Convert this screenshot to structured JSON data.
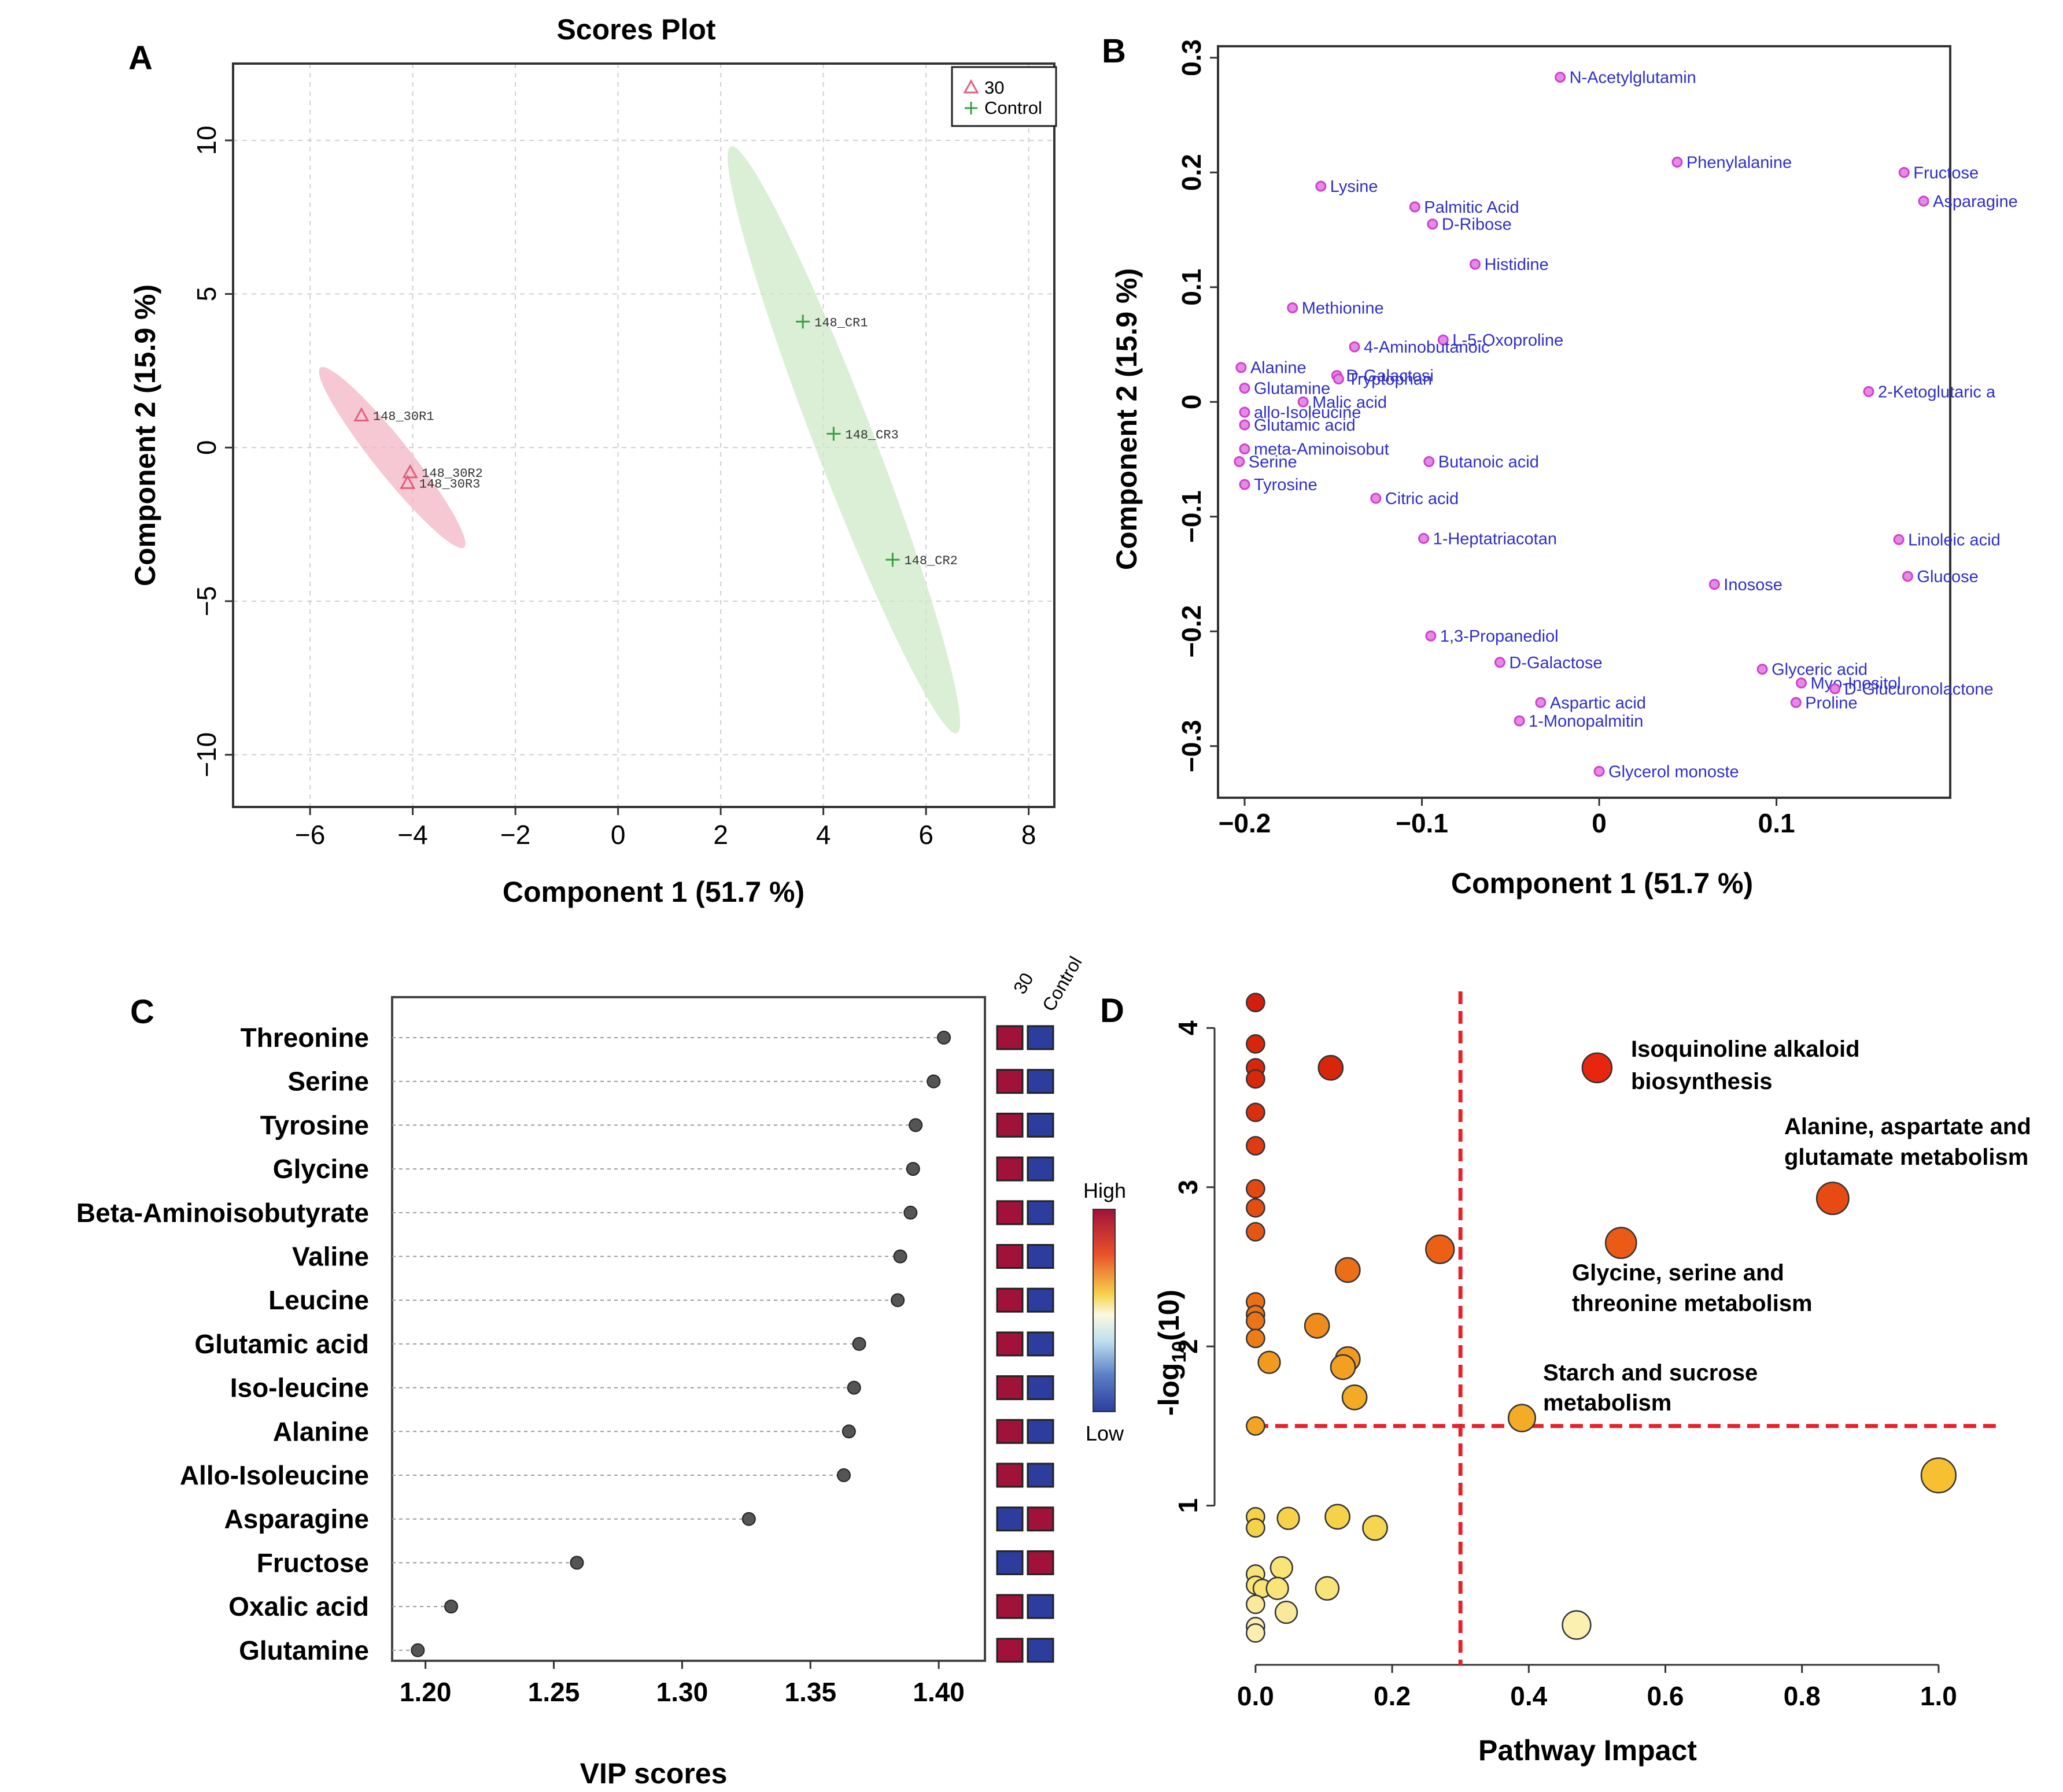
{
  "panels": {
    "A": {
      "letter": "A",
      "chart_data": {
        "type": "scatter",
        "title": "Scores Plot",
        "xlabel": "Component 1 (51.7 %)",
        "ylabel": "Component 2 (15.9 %)",
        "xlim": [
          -7.5,
          8.5
        ],
        "ylim": [
          -11.7,
          12.5
        ],
        "xticks": [
          -6,
          -4,
          -2,
          0,
          2,
          4,
          6,
          8
        ],
        "yticks": [
          -10,
          -5,
          0,
          5,
          10
        ],
        "grid": true,
        "legend": {
          "position": "top-right",
          "entries": [
            {
              "name": "30",
              "marker": "triangle",
              "color": "#e0607e"
            },
            {
              "name": "Control",
              "marker": "plus",
              "color": "#3aa040"
            }
          ]
        },
        "series": [
          {
            "name": "30",
            "marker": "triangle",
            "color": "#e0607e",
            "ellipse_color": "#f3b6c4",
            "points": [
              {
                "label": "148_30R1",
                "x": -5.0,
                "y": 1.05
              },
              {
                "label": "148_30R2",
                "x": -4.05,
                "y": -0.8
              },
              {
                "label": "148_30R3",
                "x": -4.1,
                "y": -1.15
              }
            ],
            "ellipse": {
              "cx": -4.4,
              "cy": -0.3,
              "x1": -5.8,
              "y1": 2.6,
              "x2": -3.0,
              "y2": -3.25,
              "halfwidth": 0.7
            }
          },
          {
            "name": "Control",
            "marker": "plus",
            "color": "#3aa040",
            "ellipse_color": "#cfe8c8",
            "points": [
              {
                "label": "148_CR1",
                "x": 3.6,
                "y": 4.1
              },
              {
                "label": "148_CR3",
                "x": 4.2,
                "y": 0.45
              },
              {
                "label": "148_CR2",
                "x": 5.35,
                "y": -3.65
              }
            ],
            "ellipse": {
              "cx": 4.4,
              "cy": 0.2,
              "x1": 2.2,
              "y1": 9.8,
              "x2": 6.6,
              "y2": -9.3,
              "halfwidth": 1.15
            }
          }
        ]
      }
    },
    "B": {
      "letter": "B",
      "chart_data": {
        "type": "scatter",
        "xlabel": "Component 1 (51.7 %)",
        "ylabel": "Component 2 (15.9 %)",
        "xlim": [
          -0.215,
          0.198
        ],
        "ylim": [
          -0.345,
          0.31
        ],
        "xticks": [
          -0.2,
          -0.1,
          0,
          0.1
        ],
        "xtick_labels": [
          "−0.2",
          "−0.1",
          "0",
          "0.1"
        ],
        "yticks": [
          -0.3,
          -0.2,
          -0.1,
          0,
          0.1,
          0.2,
          0.3
        ],
        "ytick_labels": [
          "−0.3",
          "−0.2",
          "−0.1",
          "0",
          "0.1",
          "0.2",
          "0.3"
        ],
        "point_color": "#cc44cc",
        "label_color": "#2f2fc8",
        "points": [
          {
            "label": "N-Acetylglutamin",
            "x": -0.022,
            "y": 0.283
          },
          {
            "label": "Phenylalanine",
            "x": 0.044,
            "y": 0.209
          },
          {
            "label": "Fructose",
            "x": 0.172,
            "y": 0.2
          },
          {
            "label": "Asparagine",
            "x": 0.183,
            "y": 0.175
          },
          {
            "label": "Lysine",
            "x": -0.157,
            "y": 0.188
          },
          {
            "label": "Palmitic Acid",
            "x": -0.104,
            "y": 0.17
          },
          {
            "label": "D-Ribose",
            "x": -0.094,
            "y": 0.155
          },
          {
            "label": "Histidine",
            "x": -0.07,
            "y": 0.12
          },
          {
            "label": "Methionine",
            "x": -0.173,
            "y": 0.082
          },
          {
            "label": "L-5-Oxoproline",
            "x": -0.088,
            "y": 0.054
          },
          {
            "label": "4-Aminobutanoic",
            "x": -0.138,
            "y": 0.048
          },
          {
            "label": "Alanine",
            "x": -0.202,
            "y": 0.03
          },
          {
            "label": "D-Galactosi",
            "x": -0.148,
            "y": 0.023
          },
          {
            "label": "Tryptophan",
            "x": -0.147,
            "y": 0.02
          },
          {
            "label": "Glutamine",
            "x": -0.2,
            "y": 0.012
          },
          {
            "label": "2-Ketoglutaric a",
            "x": 0.152,
            "y": 0.009
          },
          {
            "label": "Malic acid",
            "x": -0.167,
            "y": 0.0
          },
          {
            "label": "allo-Isoleucine",
            "x": -0.2,
            "y": -0.009
          },
          {
            "label": "Glutamic acid",
            "x": -0.2,
            "y": -0.02
          },
          {
            "label": "meta-Aminoisobut",
            "x": -0.2,
            "y": -0.041
          },
          {
            "label": "Serine",
            "x": -0.203,
            "y": -0.052
          },
          {
            "label": "Butanoic acid",
            "x": -0.096,
            "y": -0.052
          },
          {
            "label": "Tyrosine",
            "x": -0.2,
            "y": -0.072
          },
          {
            "label": "Citric acid",
            "x": -0.126,
            "y": -0.084
          },
          {
            "label": "1-Heptatriacotan",
            "x": -0.099,
            "y": -0.119
          },
          {
            "label": "Linoleic acid",
            "x": 0.169,
            "y": -0.12
          },
          {
            "label": "Glucose",
            "x": 0.174,
            "y": -0.152
          },
          {
            "label": "Inosose",
            "x": 0.065,
            "y": -0.159
          },
          {
            "label": "1,3-Propanediol",
            "x": -0.095,
            "y": -0.204
          },
          {
            "label": "D-Galactose",
            "x": -0.056,
            "y": -0.227
          },
          {
            "label": "Glyceric acid",
            "x": 0.092,
            "y": -0.233
          },
          {
            "label": "Myo-Inositol",
            "x": 0.114,
            "y": -0.245
          },
          {
            "label": "D-Glucuronolactone",
            "x": 0.133,
            "y": -0.25
          },
          {
            "label": "Proline",
            "x": 0.111,
            "y": -0.262
          },
          {
            "label": "Aspartic acid",
            "x": -0.033,
            "y": -0.262
          },
          {
            "label": "1-Monopalmitin",
            "x": -0.045,
            "y": -0.278
          },
          {
            "label": "Glycerol monoste",
            "x": 0.0,
            "y": -0.322
          }
        ]
      }
    },
    "C": {
      "letter": "C",
      "chart_data": {
        "type": "dot",
        "xlabel": "VIP scores",
        "xlim": [
          1.187,
          1.418
        ],
        "xticks": [
          1.2,
          1.25,
          1.3,
          1.35,
          1.4
        ],
        "xtick_labels": [
          "1.20",
          "1.25",
          "1.30",
          "1.35",
          "1.40"
        ],
        "heatmap_columns": [
          "30",
          "Control"
        ],
        "colorbar": {
          "high_label": "High",
          "low_label": "Low",
          "high_color": "#a0123a",
          "low_color": "#2c3d9e"
        },
        "rows": [
          {
            "name": "Threonine",
            "vip": 1.402,
            "heat": [
              "high",
              "low"
            ]
          },
          {
            "name": "Serine",
            "vip": 1.398,
            "heat": [
              "high",
              "low"
            ]
          },
          {
            "name": "Tyrosine",
            "vip": 1.391,
            "heat": [
              "high",
              "low"
            ]
          },
          {
            "name": "Glycine",
            "vip": 1.39,
            "heat": [
              "high",
              "low"
            ]
          },
          {
            "name": "Beta-Aminoisobutyrate",
            "vip": 1.389,
            "heat": [
              "high",
              "low"
            ]
          },
          {
            "name": "Valine",
            "vip": 1.385,
            "heat": [
              "high",
              "low"
            ]
          },
          {
            "name": "Leucine",
            "vip": 1.384,
            "heat": [
              "high",
              "low"
            ]
          },
          {
            "name": "Glutamic acid",
            "vip": 1.369,
            "heat": [
              "high",
              "low"
            ]
          },
          {
            "name": "Iso-leucine",
            "vip": 1.367,
            "heat": [
              "high",
              "low"
            ]
          },
          {
            "name": "Alanine",
            "vip": 1.365,
            "heat": [
              "high",
              "low"
            ]
          },
          {
            "name": "Allo-Isoleucine",
            "vip": 1.363,
            "heat": [
              "high",
              "low"
            ]
          },
          {
            "name": "Asparagine",
            "vip": 1.326,
            "heat": [
              "low",
              "high"
            ]
          },
          {
            "name": "Fructose",
            "vip": 1.259,
            "heat": [
              "low",
              "high"
            ]
          },
          {
            "name": "Oxalic acid",
            "vip": 1.21,
            "heat": [
              "high",
              "low"
            ]
          },
          {
            "name": "Glutamine",
            "vip": 1.197,
            "heat": [
              "high",
              "low"
            ]
          }
        ]
      }
    },
    "D": {
      "letter": "D",
      "chart_data": {
        "type": "scatter",
        "xlabel": "Pathway Impact",
        "ylabel": "-log10(10)",
        "ylabel_main": "-log",
        "ylabel_sub": "10",
        "ylabel_tail": "(10)",
        "xlim": [
          -0.06,
          1.1
        ],
        "ylim": [
          0.0,
          4.23
        ],
        "xticks": [
          0.0,
          0.2,
          0.4,
          0.6,
          0.8,
          1.0
        ],
        "xtick_labels": [
          "0.0",
          "0.2",
          "0.4",
          "0.6",
          "0.8",
          "1.0"
        ],
        "yticks": [
          1,
          2,
          3,
          4
        ],
        "thresholds": {
          "x": 0.3,
          "y": 1.5,
          "color": "#e8202a"
        },
        "annotations": [
          {
            "lines": [
              "Isoquinoline alkaloid",
              "biosynthesis"
            ]
          },
          {
            "lines": [
              "Alanine, aspartate and",
              "glutamate metabolism"
            ]
          },
          {
            "lines": [
              "Glycine, serine and",
              "threonine metabolism"
            ]
          },
          {
            "lines": [
              "Starch and sucrose",
              "metabolism"
            ]
          }
        ],
        "points": [
          {
            "x": 0.0,
            "y": 4.16,
            "r": 0.3,
            "color": "#d41e0c"
          },
          {
            "x": 0.0,
            "y": 3.9,
            "r": 0.3,
            "color": "#d8260c"
          },
          {
            "x": 0.0,
            "y": 3.75,
            "r": 0.3,
            "color": "#d8260c"
          },
          {
            "x": 0.0,
            "y": 3.68,
            "r": 0.3,
            "color": "#d8280c"
          },
          {
            "x": 0.0,
            "y": 3.47,
            "r": 0.3,
            "color": "#db2e0e"
          },
          {
            "x": 0.0,
            "y": 3.26,
            "r": 0.3,
            "color": "#df3a10"
          },
          {
            "x": 0.0,
            "y": 2.99,
            "r": 0.3,
            "color": "#e24812"
          },
          {
            "x": 0.0,
            "y": 2.87,
            "r": 0.3,
            "color": "#e44e12"
          },
          {
            "x": 0.0,
            "y": 2.72,
            "r": 0.3,
            "color": "#e55614"
          },
          {
            "x": 0.0,
            "y": 2.28,
            "r": 0.3,
            "color": "#ea7016"
          },
          {
            "x": 0.0,
            "y": 2.2,
            "r": 0.3,
            "color": "#eb7418"
          },
          {
            "x": 0.0,
            "y": 2.16,
            "r": 0.3,
            "color": "#eb7418"
          },
          {
            "x": 0.0,
            "y": 2.05,
            "r": 0.3,
            "color": "#ed7c18"
          },
          {
            "x": 0.0,
            "y": 1.5,
            "r": 0.3,
            "color": "#f2a422"
          },
          {
            "x": 0.11,
            "y": 3.75,
            "r": 0.55,
            "color": "#d8260c"
          },
          {
            "x": 0.5,
            "y": 3.75,
            "r": 0.75,
            "color": "#e8260e"
          },
          {
            "x": 0.845,
            "y": 2.93,
            "r": 0.85,
            "color": "#e84a14"
          },
          {
            "x": 0.535,
            "y": 2.65,
            "r": 0.8,
            "color": "#eb5a16"
          },
          {
            "x": 0.27,
            "y": 2.61,
            "r": 0.7,
            "color": "#ec6016"
          },
          {
            "x": 0.135,
            "y": 2.48,
            "r": 0.55,
            "color": "#ed6e18"
          },
          {
            "x": 0.09,
            "y": 2.13,
            "r": 0.55,
            "color": "#f08c1c"
          },
          {
            "x": 0.02,
            "y": 1.9,
            "r": 0.45,
            "color": "#f29a20"
          },
          {
            "x": 0.135,
            "y": 1.92,
            "r": 0.55,
            "color": "#f29a20"
          },
          {
            "x": 0.128,
            "y": 1.87,
            "r": 0.55,
            "color": "#f2a022"
          },
          {
            "x": 0.145,
            "y": 1.68,
            "r": 0.55,
            "color": "#f3aa24"
          },
          {
            "x": 0.39,
            "y": 1.55,
            "r": 0.65,
            "color": "#f4ac26"
          },
          {
            "x": 1.0,
            "y": 1.19,
            "r": 0.95,
            "color": "#f7c030"
          },
          {
            "x": 0.0,
            "y": 0.93,
            "r": 0.3,
            "color": "#f6d24a"
          },
          {
            "x": 0.0,
            "y": 0.86,
            "r": 0.3,
            "color": "#f6d24a"
          },
          {
            "x": 0.048,
            "y": 0.92,
            "r": 0.45,
            "color": "#f6d24a"
          },
          {
            "x": 0.12,
            "y": 0.93,
            "r": 0.55,
            "color": "#f6d24a"
          },
          {
            "x": 0.175,
            "y": 0.86,
            "r": 0.55,
            "color": "#f6d650"
          },
          {
            "x": 0.0,
            "y": 0.57,
            "r": 0.3,
            "color": "#f8e478"
          },
          {
            "x": 0.038,
            "y": 0.61,
            "r": 0.45,
            "color": "#f8e478"
          },
          {
            "x": 0.0,
            "y": 0.5,
            "r": 0.3,
            "color": "#f8e478"
          },
          {
            "x": 0.01,
            "y": 0.48,
            "r": 0.3,
            "color": "#f8e478"
          },
          {
            "x": 0.032,
            "y": 0.48,
            "r": 0.45,
            "color": "#f8e478"
          },
          {
            "x": 0.105,
            "y": 0.48,
            "r": 0.5,
            "color": "#f8e478"
          },
          {
            "x": 0.0,
            "y": 0.38,
            "r": 0.3,
            "color": "#fae99a"
          },
          {
            "x": 0.045,
            "y": 0.33,
            "r": 0.45,
            "color": "#fae99a"
          },
          {
            "x": 0.0,
            "y": 0.24,
            "r": 0.3,
            "color": "#fbeeb0"
          },
          {
            "x": 0.0,
            "y": 0.2,
            "r": 0.3,
            "color": "#fbeeb0"
          },
          {
            "x": 0.47,
            "y": 0.25,
            "r": 0.7,
            "color": "#fbf0b0"
          }
        ]
      }
    }
  }
}
